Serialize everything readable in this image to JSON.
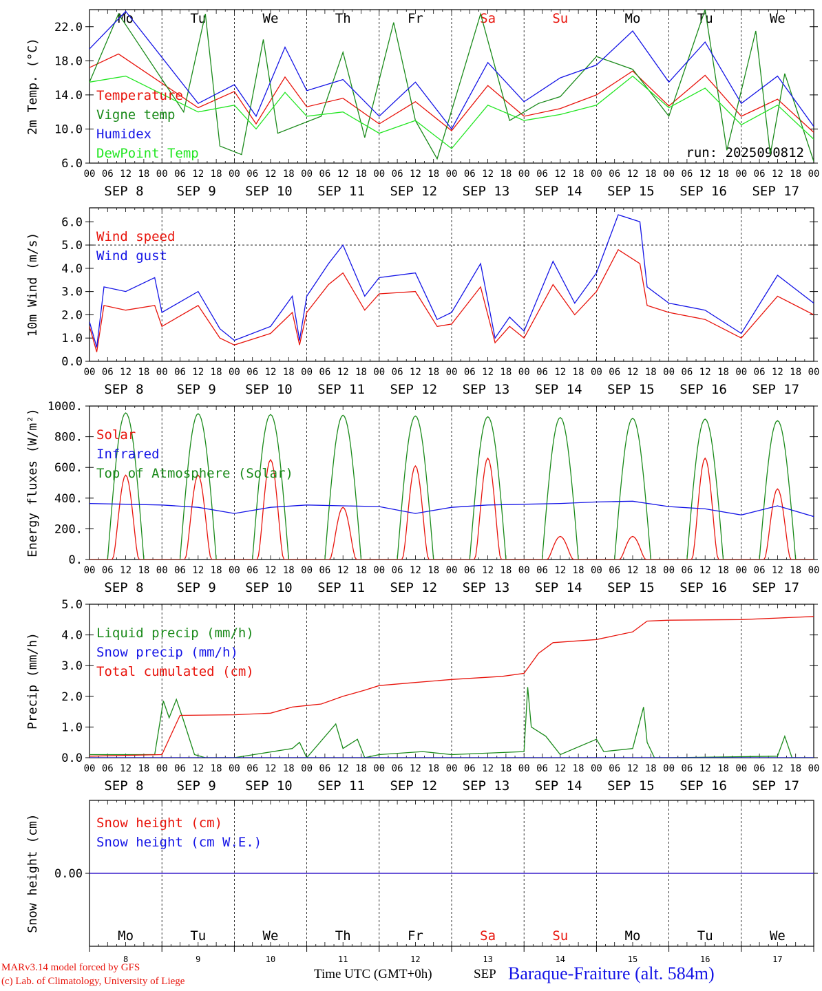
{
  "colors": {
    "red": "#e8140c",
    "green": "#1a8a1a",
    "lightgreen": "#22e622",
    "blue": "#1414e6",
    "black": "#000000"
  },
  "dates": {
    "month": "SEP",
    "days": [
      "8",
      "9",
      "10",
      "11",
      "12",
      "13",
      "14",
      "15",
      "16",
      "17"
    ],
    "hour_ticks": [
      "00",
      "06",
      "12",
      "18"
    ],
    "weekdays": [
      "Mo",
      "Tu",
      "We",
      "Th",
      "Fr",
      "Sa",
      "Su",
      "Mo",
      "Tu",
      "We"
    ],
    "weekend_indices": [
      5,
      6
    ]
  },
  "run_label": "run: 2025090812",
  "chart_data": [
    {
      "type": "line",
      "ylabel": "2m Temp. (°C)",
      "ylim": [
        6.0,
        24.0
      ],
      "yticks": [
        "6.0",
        "10.0",
        "14.0",
        "18.0",
        "22.0"
      ],
      "ytick_values": [
        6,
        10,
        14,
        18,
        22
      ],
      "ref_lines": [],
      "series": [
        {
          "name": "Temperature",
          "color": "red",
          "x": [
            0,
            0.4,
            1.5,
            2,
            2.3,
            2.7,
            3,
            3.5,
            4,
            4.5,
            5,
            5.5,
            6,
            6.5,
            7,
            7.5,
            8,
            8.5,
            9,
            9.5,
            10
          ],
          "values": [
            17.2,
            18.8,
            12.5,
            14.4,
            10.6,
            16.1,
            12.6,
            13.6,
            10.6,
            13.2,
            9.8,
            15.1,
            11.5,
            12.4,
            14.0,
            16.8,
            12.7,
            16.3,
            11.5,
            13.5,
            9.6
          ]
        },
        {
          "name": "Vigne temp",
          "color": "green",
          "x": [
            0,
            0.4,
            1.3,
            1.6,
            1.8,
            2.1,
            2.4,
            2.6,
            3.2,
            3.5,
            3.8,
            4.2,
            4.5,
            4.8,
            5.4,
            5.8,
            6.2,
            6.5,
            7,
            7.5,
            8,
            8.5,
            8.8,
            9.2,
            9.4,
            9.6,
            10
          ],
          "values": [
            15.5,
            23.5,
            12.0,
            23.5,
            8.0,
            7.0,
            20.5,
            9.5,
            11.5,
            19.0,
            9.0,
            22.5,
            11.0,
            6.5,
            23.5,
            11.0,
            13.0,
            13.8,
            18.5,
            17.0,
            11.5,
            24.0,
            7.5,
            21.5,
            7.0,
            16.5,
            6.2
          ]
        },
        {
          "name": "Humidex",
          "color": "blue",
          "x": [
            0,
            0.5,
            1.5,
            2,
            2.3,
            2.7,
            3,
            3.5,
            4,
            4.5,
            5,
            5.5,
            6,
            6.5,
            7,
            7.5,
            8,
            8.5,
            9,
            9.5,
            10
          ],
          "values": [
            19.4,
            23.8,
            13.0,
            15.2,
            11.5,
            19.6,
            14.5,
            15.8,
            11.5,
            15.5,
            10.0,
            17.8,
            13.2,
            16.0,
            17.5,
            21.5,
            15.5,
            20.2,
            13.0,
            16.2,
            10.3
          ]
        },
        {
          "name": "DewPoint Temp",
          "color": "lightgreen",
          "x": [
            0,
            0.5,
            1.5,
            2,
            2.3,
            2.7,
            3,
            3.5,
            4,
            4.5,
            5,
            5.5,
            6,
            6.5,
            7,
            7.5,
            8,
            8.5,
            9,
            9.5,
            10
          ],
          "values": [
            15.5,
            16.2,
            12.0,
            12.8,
            10.0,
            14.3,
            11.5,
            12.0,
            9.5,
            11.0,
            7.7,
            12.8,
            11.0,
            11.7,
            12.8,
            16.2,
            12.5,
            14.8,
            10.5,
            12.8,
            8.8
          ]
        }
      ],
      "legend": [
        "Temperature",
        "Vigne temp",
        "Humidex",
        "DewPoint Temp"
      ]
    },
    {
      "type": "line",
      "ylabel": "10m Wind (m/s)",
      "ylim": [
        0.0,
        6.6
      ],
      "yticks": [
        "0.0",
        "1.0",
        "2.0",
        "3.0",
        "4.0",
        "5.0",
        "6.0"
      ],
      "ytick_values": [
        0,
        1,
        2,
        3,
        4,
        5,
        6
      ],
      "ref_lines": [
        5.0
      ],
      "series": [
        {
          "name": "Wind speed",
          "color": "red",
          "x": [
            0,
            0.1,
            0.2,
            0.5,
            0.9,
            1,
            1.5,
            1.8,
            2,
            2.5,
            2.8,
            2.9,
            3,
            3.3,
            3.5,
            3.8,
            4,
            4.5,
            4.8,
            5,
            5.4,
            5.6,
            5.8,
            6,
            6.4,
            6.7,
            7,
            7.3,
            7.6,
            7.7,
            8,
            8.5,
            9,
            9.5,
            10
          ],
          "values": [
            1.5,
            0.4,
            2.4,
            2.2,
            2.4,
            1.5,
            2.4,
            1.0,
            0.7,
            1.2,
            2.1,
            0.7,
            2.1,
            3.3,
            3.8,
            2.2,
            2.9,
            3.0,
            1.5,
            1.6,
            3.2,
            0.8,
            1.5,
            1.0,
            3.3,
            2.0,
            3.0,
            4.8,
            4.2,
            2.4,
            2.1,
            1.8,
            1.0,
            2.8,
            2.0
          ]
        },
        {
          "name": "Wind gust",
          "color": "blue",
          "x": [
            0,
            0.1,
            0.2,
            0.5,
            0.9,
            1,
            1.5,
            1.8,
            2,
            2.5,
            2.8,
            2.9,
            3,
            3.3,
            3.5,
            3.8,
            4,
            4.5,
            4.8,
            5,
            5.4,
            5.6,
            5.8,
            6,
            6.4,
            6.7,
            7,
            7.3,
            7.6,
            7.7,
            8,
            8.5,
            9,
            9.5,
            10
          ],
          "values": [
            1.7,
            0.6,
            3.2,
            3.0,
            3.6,
            2.1,
            3.0,
            1.4,
            0.9,
            1.5,
            2.8,
            0.9,
            2.8,
            4.2,
            5.0,
            2.8,
            3.6,
            3.8,
            1.8,
            2.1,
            4.2,
            1.0,
            1.9,
            1.3,
            4.3,
            2.5,
            3.8,
            6.3,
            6.0,
            3.2,
            2.5,
            2.2,
            1.2,
            3.7,
            2.5
          ]
        }
      ],
      "legend": [
        "Wind speed",
        "Wind gust"
      ]
    },
    {
      "type": "line",
      "ylabel": "Energy fluxes (W/m²)",
      "ylim": [
        0,
        1000
      ],
      "yticks": [
        "0.",
        "200.",
        "400.",
        "600.",
        "800.",
        "1000."
      ],
      "ytick_values": [
        0,
        200,
        400,
        600,
        800,
        1000
      ],
      "ref_lines": [],
      "solar_peaks": [
        550,
        550,
        650,
        340,
        610,
        660,
        150,
        150,
        660,
        460
      ],
      "toa_peaks": [
        955,
        950,
        945,
        940,
        935,
        930,
        925,
        920,
        915,
        905
      ],
      "infrared": {
        "x": [
          0,
          0.5,
          1,
          1.5,
          2,
          2.5,
          3,
          3.5,
          4,
          4.5,
          5,
          5.5,
          6,
          6.5,
          7,
          7.5,
          8,
          8.5,
          9,
          9.5,
          10
        ],
        "values": [
          365,
          360,
          355,
          340,
          300,
          340,
          355,
          350,
          345,
          300,
          340,
          355,
          360,
          365,
          375,
          380,
          345,
          330,
          290,
          350,
          280
        ]
      },
      "series": [
        {
          "name": "Solar",
          "color": "red"
        },
        {
          "name": "Infrared",
          "color": "blue"
        },
        {
          "name": "Top of Atmosphere (Solar)",
          "color": "green"
        }
      ],
      "legend": [
        "Solar",
        "Infrared",
        "Top of Atmosphere (Solar)"
      ]
    },
    {
      "type": "line",
      "ylabel": "Precip (mm/h)",
      "ylim": [
        0.0,
        5.0
      ],
      "yticks": [
        "0.0",
        "1.0",
        "2.0",
        "3.0",
        "4.0",
        "5.0"
      ],
      "ytick_values": [
        0,
        1,
        2,
        3,
        4,
        5
      ],
      "ref_lines": [],
      "series": [
        {
          "name": "Liquid precip (mm/h)",
          "color": "green",
          "x": [
            0,
            0.9,
            1.02,
            1.1,
            1.2,
            1.3,
            1.45,
            1.6,
            2,
            2.8,
            2.9,
            3,
            3.4,
            3.5,
            3.7,
            3.8,
            4,
            4.6,
            5,
            6,
            6.05,
            6.1,
            6.3,
            6.5,
            7.0,
            7.1,
            7.5,
            7.65,
            7.7,
            7.8,
            8,
            9.5,
            9.6,
            9.7,
            10
          ],
          "values": [
            0.1,
            0.1,
            1.85,
            1.3,
            1.9,
            1.2,
            0.1,
            0.0,
            0.0,
            0.3,
            0.5,
            0.0,
            1.1,
            0.3,
            0.6,
            0.0,
            0.1,
            0.2,
            0.1,
            0.2,
            2.3,
            1.0,
            0.7,
            0.1,
            0.6,
            0.2,
            0.3,
            1.65,
            0.5,
            0.0,
            0.0,
            0.05,
            0.7,
            0.0,
            0.0
          ]
        },
        {
          "name": "Snow precip (mm/h)",
          "color": "blue",
          "x": [
            0,
            10
          ],
          "values": [
            0,
            0
          ]
        },
        {
          "name": "Total cumulated (cm)",
          "color": "red",
          "x": [
            0,
            1,
            1.25,
            2,
            2.5,
            2.8,
            3,
            3.2,
            3.5,
            3.8,
            4,
            4.5,
            5,
            5.7,
            6,
            6.2,
            6.4,
            7,
            7.5,
            7.7,
            8,
            9,
            9.5,
            10
          ],
          "values": [
            0.05,
            0.1,
            1.38,
            1.4,
            1.45,
            1.65,
            1.7,
            1.75,
            2.0,
            2.2,
            2.35,
            2.45,
            2.55,
            2.65,
            2.75,
            3.4,
            3.75,
            3.85,
            4.1,
            4.45,
            4.48,
            4.5,
            4.55,
            4.6
          ]
        }
      ],
      "legend": [
        "Liquid precip (mm/h)",
        "Snow precip (mm/h)",
        "Total cumulated (cm)"
      ]
    },
    {
      "type": "line",
      "ylabel": "Snow height (cm)",
      "ylim": [
        -1,
        1
      ],
      "yticks": [
        "0.00"
      ],
      "ytick_values": [
        0
      ],
      "ref_lines": [],
      "series": [
        {
          "name": "Snow height (cm)",
          "color": "red",
          "x": [
            0,
            10
          ],
          "values": [
            0,
            0
          ]
        },
        {
          "name": "Snow height (cm W.E.)",
          "color": "blue",
          "x": [
            0,
            10
          ],
          "values": [
            0,
            0
          ]
        }
      ],
      "legend": [
        "Snow height (cm)",
        "Snow height (cm W.E.)"
      ]
    }
  ],
  "footer": {
    "model_line1": "MARv3.14 model forced by GFS",
    "model_line2": "(c) Lab. of Climatology, University of Liege",
    "xlabel": "Time UTC (GMT+0h)",
    "month": "SEP",
    "station": "Baraque-Fraiture (alt. 584m)"
  }
}
